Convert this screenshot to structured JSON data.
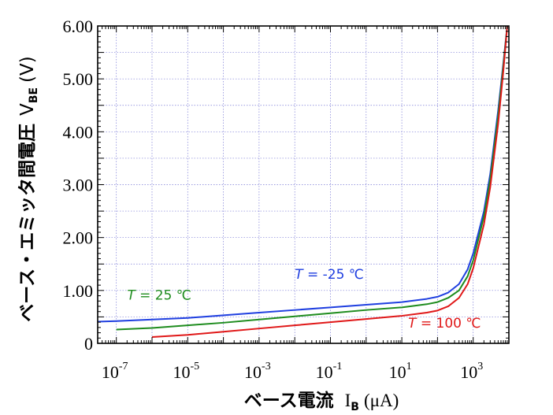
{
  "chart_data": {
    "type": "line",
    "x_scale": "log",
    "xlabel": {
      "main": "ベース電流",
      "symbol": "I",
      "subscript": "B",
      "unit": "(μA)"
    },
    "ylabel": {
      "main": "ベース・エミッタ間電圧",
      "symbol": "V",
      "subscript": "BE",
      "unit": "(V)"
    },
    "xlim": [
      3e-08,
      10000
    ],
    "ylim": [
      0,
      6
    ],
    "grid": true,
    "x_ticks": [
      {
        "value": 1e-07,
        "base": "10",
        "exp": "-7"
      },
      {
        "value": 1e-05,
        "base": "10",
        "exp": "-5"
      },
      {
        "value": 0.001,
        "base": "10",
        "exp": "-3"
      },
      {
        "value": 0.1,
        "base": "10",
        "exp": "-1"
      },
      {
        "value": 10,
        "base": "10",
        "exp": "1"
      },
      {
        "value": 1000,
        "base": "10",
        "exp": "3"
      }
    ],
    "y_ticks": [
      {
        "value": 0,
        "label": "0"
      },
      {
        "value": 1,
        "label": "1.00"
      },
      {
        "value": 2,
        "label": "2.00"
      },
      {
        "value": 3,
        "label": "3.00"
      },
      {
        "value": 4,
        "label": "4.00"
      },
      {
        "value": 5,
        "label": "5.00"
      },
      {
        "value": 6,
        "label": "6.00"
      }
    ],
    "series": [
      {
        "name": "T = -25 ℃",
        "label_var": "T",
        "label_rest": " = -25 ℃",
        "color": "#1f3fe0",
        "points": [
          [
            3e-08,
            0.41
          ],
          [
            1e-07,
            0.42
          ],
          [
            1e-06,
            0.45
          ],
          [
            1e-05,
            0.48
          ],
          [
            0.0001,
            0.53
          ],
          [
            0.001,
            0.58
          ],
          [
            0.01,
            0.63
          ],
          [
            0.1,
            0.68
          ],
          [
            1,
            0.73
          ],
          [
            10,
            0.78
          ],
          [
            50,
            0.84
          ],
          [
            100,
            0.88
          ],
          [
            200,
            0.96
          ],
          [
            400,
            1.12
          ],
          [
            700,
            1.4
          ],
          [
            1000,
            1.7
          ],
          [
            2000,
            2.5
          ],
          [
            3000,
            3.2
          ],
          [
            5000,
            4.4
          ],
          [
            7000,
            5.3
          ],
          [
            9000,
            6.0
          ]
        ]
      },
      {
        "name": "T = 25 ℃",
        "label_var": "T",
        "label_rest": " = 25 ℃",
        "color": "#1e8c1e",
        "points": [
          [
            1e-07,
            0.26
          ],
          [
            1e-06,
            0.29
          ],
          [
            1e-05,
            0.34
          ],
          [
            0.0001,
            0.39
          ],
          [
            0.001,
            0.45
          ],
          [
            0.01,
            0.51
          ],
          [
            0.1,
            0.57
          ],
          [
            1,
            0.63
          ],
          [
            10,
            0.68
          ],
          [
            50,
            0.74
          ],
          [
            100,
            0.78
          ],
          [
            200,
            0.86
          ],
          [
            400,
            1.0
          ],
          [
            700,
            1.27
          ],
          [
            1000,
            1.57
          ],
          [
            2000,
            2.4
          ],
          [
            3000,
            3.1
          ],
          [
            5000,
            4.3
          ],
          [
            7000,
            5.25
          ],
          [
            9000,
            6.0
          ]
        ]
      },
      {
        "name": "T = 100 ℃",
        "label_var": "T",
        "label_rest": " = 100 ℃",
        "color": "#e01818",
        "points": [
          [
            1e-06,
            0.12
          ],
          [
            1e-05,
            0.16
          ],
          [
            0.0001,
            0.22
          ],
          [
            0.001,
            0.28
          ],
          [
            0.01,
            0.34
          ],
          [
            0.1,
            0.4
          ],
          [
            1,
            0.46
          ],
          [
            10,
            0.52
          ],
          [
            50,
            0.58
          ],
          [
            100,
            0.62
          ],
          [
            200,
            0.7
          ],
          [
            400,
            0.86
          ],
          [
            700,
            1.12
          ],
          [
            1000,
            1.42
          ],
          [
            2000,
            2.25
          ],
          [
            3000,
            2.95
          ],
          [
            5000,
            4.15
          ],
          [
            7000,
            5.15
          ],
          [
            9000,
            6.0
          ]
        ]
      }
    ]
  }
}
